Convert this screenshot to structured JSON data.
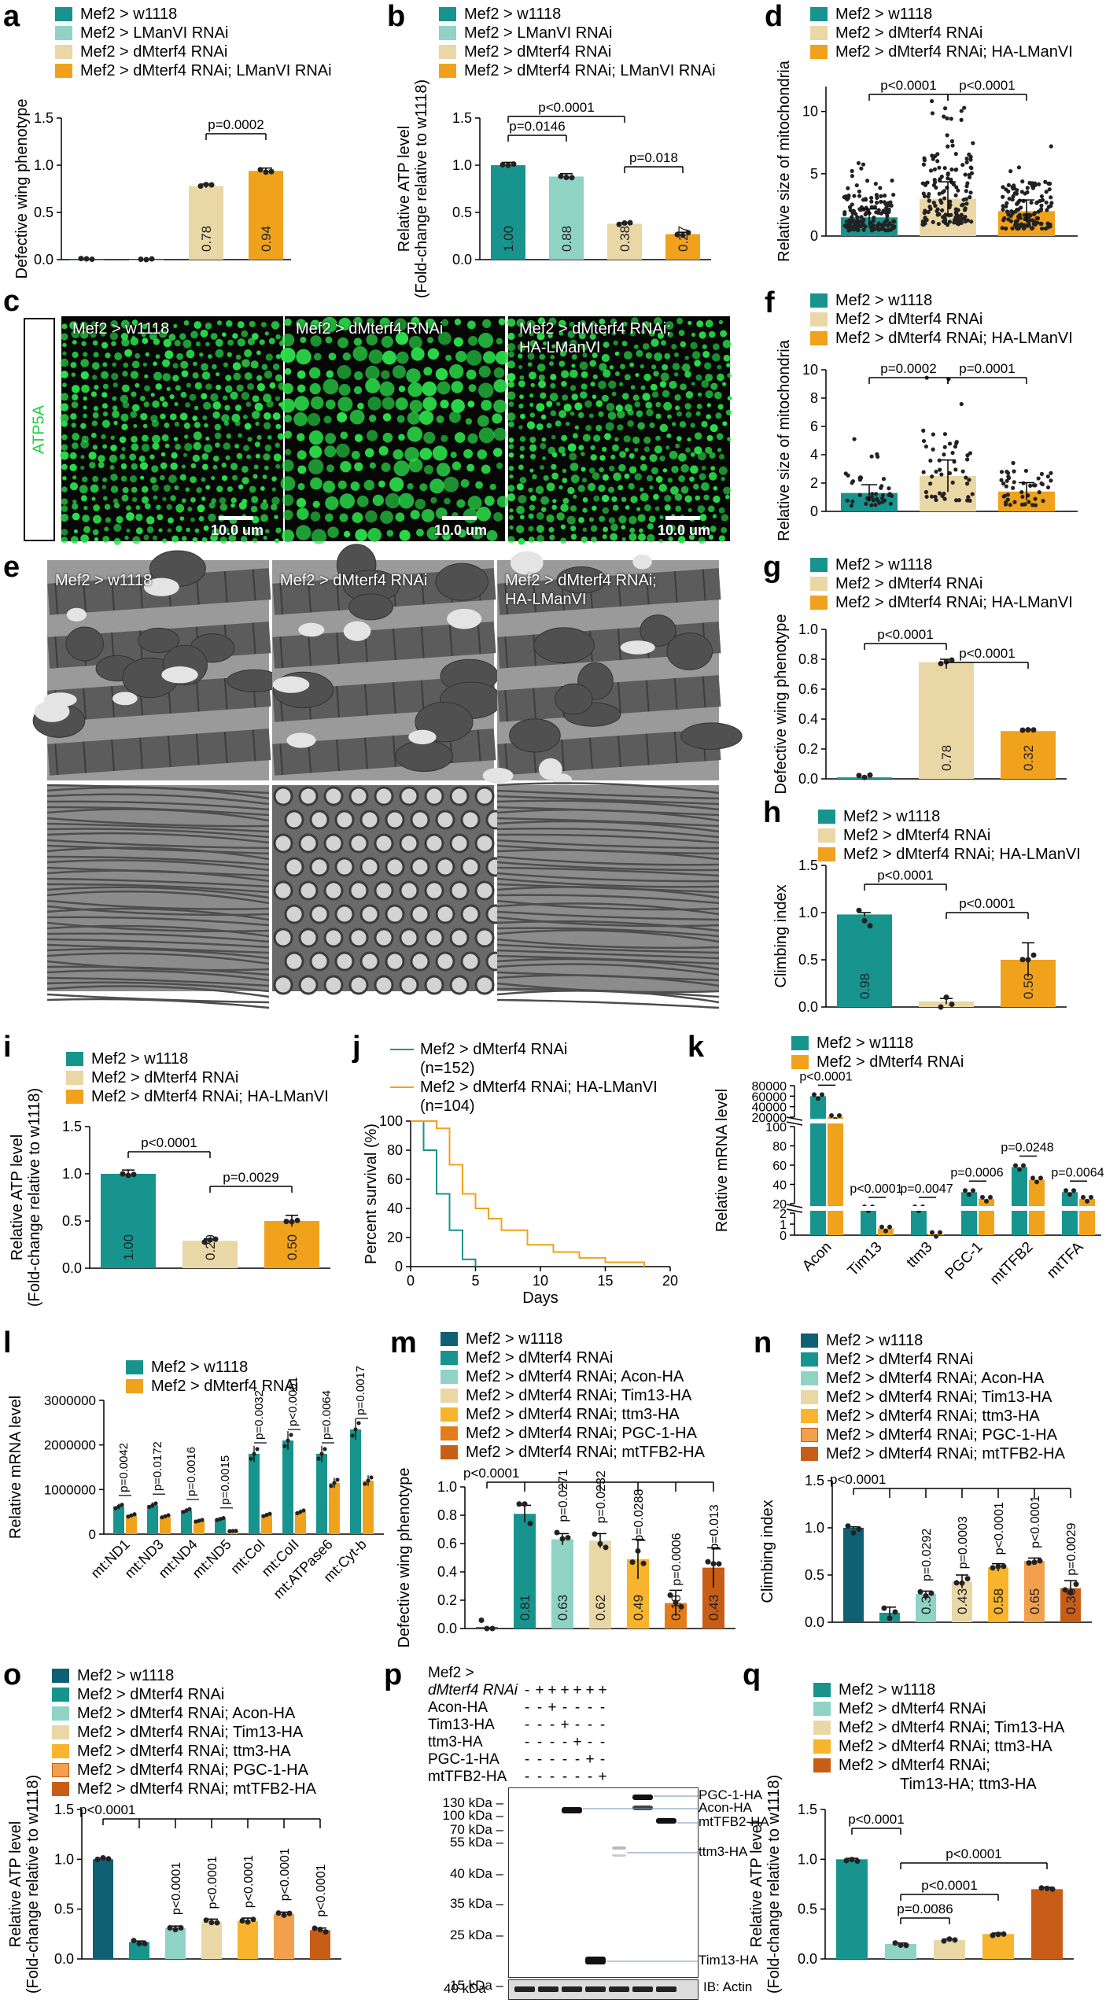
{
  "colors": {
    "teal": "#17948e",
    "mint": "#8ed3c4",
    "wheat": "#ead7a6",
    "orange": "#f0a21d",
    "darkteal": "#0f6073",
    "amber": "#f7b42c",
    "lightorange": "#f3a04e",
    "rust": "#c85d18"
  },
  "panels": {
    "a": {
      "label": "a",
      "legend": [
        "Mef2 > w1118",
        "Mef2 > LManVI RNAi",
        "Mef2 > dMterf4 RNAi",
        "Mef2 > dMterf4 RNAi; LManVI RNAi"
      ],
      "ylabel": "Defective wing phenotype",
      "pvalue": "p=0.0002",
      "bar_labels": [
        "",
        "",
        "0.78",
        "0.94"
      ]
    },
    "b": {
      "label": "b",
      "legend": [
        "Mef2 > w1118",
        "Mef2 > LManVI RNAi",
        "Mef2 > dMterf4 RNAi",
        "Mef2 > dMterf4 RNAi; LManVI RNAi"
      ],
      "ylabel": "Relative ATP level",
      "ylabel2": "(Fold-change relative to w1118)",
      "pvalues": [
        "p<0.0001",
        "p=0.0146",
        "p=0.018"
      ],
      "bar_labels": [
        "1.00",
        "0.88",
        "0.38",
        "0.27"
      ]
    },
    "c": {
      "label": "c",
      "side_label": "ATP5A",
      "captions": [
        "Mef2 > w1118",
        "Mef2 > dMterf4 RNAi",
        "Mef2 > dMterf4 RNAi; HA-LManVI"
      ],
      "scale": "10.0 um"
    },
    "d": {
      "label": "d",
      "legend": [
        "Mef2 > w1118",
        "Mef2 > dMterf4 RNAi",
        "Mef2 > dMterf4 RNAi; HA-LManVI"
      ],
      "ylabel": "Relative size of mitochondria",
      "pvalues": [
        "p<0.0001",
        "p<0.0001"
      ]
    },
    "e": {
      "label": "e",
      "captions": [
        "Mef2 > w1118",
        "Mef2 > dMterf4 RNAi",
        "Mef2 > dMterf4 RNAi; HA-LManVI"
      ]
    },
    "f": {
      "label": "f",
      "legend": [
        "Mef2 > w1118",
        "Mef2 > dMterf4 RNAi",
        "Mef2 > dMterf4 RNAi; HA-LManVI"
      ],
      "ylabel": "Relative size of mitochondria",
      "pvalues": [
        "p=0.0002",
        "p=0.0001"
      ]
    },
    "g": {
      "label": "g",
      "legend": [
        "Mef2 > w1118",
        "Mef2 > dMterf4 RNAi",
        "Mef2 > dMterf4 RNAi; HA-LManVI"
      ],
      "ylabel": "Defective wing phenotype",
      "pvalues": [
        "p<0.0001",
        "p<0.0001"
      ],
      "bar_labels": [
        "",
        "0.78",
        "0.32"
      ]
    },
    "h": {
      "label": "h",
      "legend": [
        "Mef2 > w1118",
        "Mef2 > dMterf4 RNAi",
        "Mef2 > dMterf4 RNAi; HA-LManVI"
      ],
      "ylabel": "Climbing index",
      "pvalues": [
        "p<0.0001",
        "p<0.0001"
      ],
      "bar_labels": [
        "0.98",
        "",
        "0.50"
      ]
    },
    "i": {
      "label": "i",
      "legend": [
        "Mef2 > w1118",
        "Mef2 > dMterf4 RNAi",
        "Mef2 > dMterf4 RNAi; HA-LManVI"
      ],
      "ylabel": "Relative ATP level",
      "ylabel2": "(Fold-change relative to w1118)",
      "pvalues": [
        "p<0.0001",
        "p=0.0029"
      ],
      "bar_labels": [
        "1.00",
        "0.29",
        "0.50"
      ]
    },
    "j": {
      "label": "j",
      "legend": [
        "Mef2 > dMterf4 RNAi",
        "(n=152)",
        "Mef2 > dMterf4 RNAi;  HA-LManVI",
        "(n=104)"
      ],
      "ylabel": "Percent survival (%)",
      "xlabel": "Days"
    },
    "k": {
      "label": "k",
      "legend": [
        "Mef2 > w1118",
        "Mef2 > dMterf4 RNAi"
      ],
      "ylabel": "Relative mRNA level",
      "categories": [
        "Acon",
        "Tim13",
        "ttm3",
        "PGC-1",
        "mtTFB2",
        "mtTFA"
      ],
      "pvalues": [
        "p<0.0001",
        "p<0.0001",
        "p=0.0047",
        "p=0.0006",
        "p=0.0248",
        "p=0.0064"
      ]
    },
    "l": {
      "label": "l",
      "legend": [
        "Mef2 > w1118",
        "Mef2 > dMterf4 RNAi"
      ],
      "ylabel": "Relative mRNA level",
      "categories": [
        "mt:ND1",
        "mt:ND3",
        "mt:ND4",
        "mt:ND5",
        "mt:CoI",
        "mt:CoII",
        "mt:ATPase6",
        "mt:Cyt-b"
      ],
      "pvalues": [
        "p=0.0042",
        "p=0.0172",
        "p=0.0016",
        "p=0.0015",
        "p=0.0032",
        "p<0.0001",
        "p=0.0064",
        "p=0.0017"
      ]
    },
    "m": {
      "label": "m",
      "legend": [
        "Mef2 > w1118",
        "Mef2 > dMterf4 RNAi",
        "Mef2 > dMterf4 RNAi; Acon-HA",
        "Mef2 > dMterf4 RNAi; Tim13-HA",
        "Mef2 > dMterf4 RNAi; ttm3-HA",
        "Mef2 > dMterf4 RNAi; PGC-1-HA",
        "Mef2 > dMterf4 RNAi; mtTFB2-HA"
      ],
      "ylabel": "Defective wing phenotype",
      "pvalues": [
        "p<0.0001",
        "p=0.0271",
        "p=0.0232",
        "p=0.0288",
        "p=0.0006",
        "p=0.013"
      ],
      "bar_labels": [
        "",
        "0.81",
        "0.63",
        "0.62",
        "0.49",
        "0.18",
        "0.43"
      ]
    },
    "n": {
      "label": "n",
      "legend": [
        "Mef2 > w1118",
        "Mef2 > dMterf4 RNAi",
        "Mef2 > dMterf4 RNAi; Acon-HA",
        "Mef2 > dMterf4 RNAi; Tim13-HA",
        "Mef2 > dMterf4 RNAi; ttm3-HA",
        "Mef2 > dMterf4 RNAi; PGC-1-HA",
        "Mef2 > dMterf4 RNAi; mtTFB2-HA"
      ],
      "ylabel": "Climbing index",
      "pvalues": [
        "p<0.0001",
        "p=0.0292",
        "p=0.0003",
        "p<0.0001",
        "p<0.0001",
        "p=0.0029"
      ],
      "bar_labels": [
        "",
        "",
        "0.3",
        "0.43",
        "0.58",
        "0.65",
        "0.36"
      ]
    },
    "o": {
      "label": "o",
      "legend": [
        "Mef2 > w1118",
        "Mef2 > dMterf4 RNAi",
        "Mef2 > dMterf4 RNAi; Acon-HA",
        "Mef2 > dMterf4 RNAi; Tim13-HA",
        "Mef2 > dMterf4 RNAi; ttm3-HA",
        "Mef2 > dMterf4 RNAi; PGC-1-HA",
        "Mef2 > dMterf4 RNAi; mtTFB2-HA"
      ],
      "ylabel": "Relative ATP level",
      "ylabel2": "(Fold-change relative to w1118)",
      "pvalues": [
        "p<0.0001",
        "p<0.0001",
        "p<0.0001",
        "p<0.0001",
        "p<0.0001",
        "p<0.0001"
      ]
    },
    "p": {
      "label": "p",
      "rows": [
        {
          "name": "Mef2 >",
          "signs": []
        },
        {
          "name": "dMterf4 RNAi",
          "signs": [
            "-",
            "+",
            "+",
            "+",
            "+",
            "+",
            "+"
          ]
        },
        {
          "name": "Acon-HA",
          "signs": [
            "-",
            "-",
            "+",
            "-",
            "-",
            "-",
            "-"
          ]
        },
        {
          "name": "Tim13-HA",
          "signs": [
            "-",
            "-",
            "-",
            "+",
            "-",
            "-",
            "-"
          ]
        },
        {
          "name": "ttm3-HA",
          "signs": [
            "-",
            "-",
            "-",
            "-",
            "+",
            "-",
            "-"
          ]
        },
        {
          "name": "PGC-1-HA",
          "signs": [
            "-",
            "-",
            "-",
            "-",
            "-",
            "+",
            "-"
          ]
        },
        {
          "name": "mtTFB2-HA",
          "signs": [
            "-",
            "-",
            "-",
            "-",
            "-",
            "-",
            "+"
          ]
        }
      ],
      "markers": [
        "130 kDa",
        "100 kDa",
        "70 kDa",
        "55 kDa",
        "40 kDa",
        "35 kDa",
        "25 kDa",
        "15 kDa"
      ],
      "band_labels": [
        "PGC-1-HA",
        "Acon-HA",
        "mtTFB2-HA",
        "ttm3-HA",
        "Tim13-HA"
      ],
      "actin_marker": "40 kDa",
      "actin_label": "IB: Actin"
    },
    "q": {
      "label": "q",
      "legend": [
        "Mef2 > w1118",
        "Mef2 > dMterf4 RNAi",
        "Mef2 > dMterf4 RNAi; Tim13-HA",
        "Mef2 > dMterf4 RNAi; ttm3-HA",
        "Mef2 > dMterf4 RNAi;",
        "Tim13-HA; ttm3-HA"
      ],
      "ylabel": "Relative ATP level",
      "ylabel2": "(Fold-change relative to w1118)",
      "pvalues": [
        "p<0.0001",
        "p<0.0001",
        "p<0.0001",
        "p=0.0086"
      ]
    }
  },
  "chart_data": [
    {
      "panel": "a",
      "type": "bar",
      "categories": [
        "Mef2 > w1118",
        "Mef2 > LManVI RNAi",
        "Mef2 > dMterf4 RNAi",
        "Mef2 > dMterf4 RNAi; LManVI RNAi"
      ],
      "values": [
        0,
        0,
        0.78,
        0.94
      ],
      "ylim": [
        0,
        1.5
      ],
      "yticks": [
        "0.0",
        "0.5",
        "1.0",
        "1.5"
      ],
      "ylabel": "Defective wing phenotype"
    },
    {
      "panel": "b",
      "type": "bar",
      "categories": [
        "Mef2 > w1118",
        "Mef2 > LManVI RNAi",
        "Mef2 > dMterf4 RNAi",
        "Mef2 > dMterf4 RNAi; LManVI RNAi"
      ],
      "values": [
        1.0,
        0.88,
        0.38,
        0.27
      ],
      "ylim": [
        0,
        1.5
      ],
      "yticks": [
        "0.0",
        "0.5",
        "1.0",
        "1.5"
      ]
    },
    {
      "panel": "d",
      "type": "scatter",
      "categories": [
        "Mef2 > w1118",
        "Mef2 > dMterf4 RNAi",
        "Mef2 > dMterf4 RNAi; HA-LManVI"
      ],
      "values": [
        1.5,
        3.0,
        2.0
      ],
      "ylim": [
        0,
        12
      ],
      "yticks": [
        "0",
        "5",
        "10"
      ]
    },
    {
      "panel": "f",
      "type": "scatter",
      "categories": [
        "Mef2 > w1118",
        "Mef2 > dMterf4 RNAi",
        "Mef2 > dMterf4 RNAi; HA-LManVI"
      ],
      "values": [
        1.3,
        2.5,
        1.4
      ],
      "ylim": [
        0,
        10
      ],
      "yticks": [
        "0",
        "2",
        "4",
        "6",
        "8",
        "10"
      ]
    },
    {
      "panel": "g",
      "type": "bar",
      "categories": [
        "Mef2 > w1118",
        "Mef2 > dMterf4 RNAi",
        "Mef2 > dMterf4 RNAi; HA-LManVI"
      ],
      "values": [
        0.01,
        0.78,
        0.32
      ],
      "ylim": [
        0,
        1.0
      ],
      "yticks": [
        "0.0",
        "0.2",
        "0.4",
        "0.6",
        "0.8",
        "1.0"
      ]
    },
    {
      "panel": "h",
      "type": "bar",
      "categories": [
        "Mef2 > w1118",
        "Mef2 > dMterf4 RNAi",
        "Mef2 > dMterf4 RNAi; HA-LManVI"
      ],
      "values": [
        0.98,
        0.06,
        0.5
      ],
      "ylim": [
        0,
        1.5
      ],
      "yticks": [
        "0.0",
        "0.5",
        "1.0",
        "1.5"
      ]
    },
    {
      "panel": "i",
      "type": "bar",
      "categories": [
        "Mef2 > w1118",
        "Mef2 > dMterf4 RNAi",
        "Mef2 > dMterf4 RNAi; HA-LManVI"
      ],
      "values": [
        1.0,
        0.29,
        0.5
      ],
      "ylim": [
        0,
        1.5
      ],
      "yticks": [
        "0.0",
        "0.5",
        "1.0",
        "1.5"
      ]
    },
    {
      "panel": "j",
      "type": "line",
      "series": [
        {
          "name": "Mef2 > dMterf4 RNAi",
          "x": [
            0,
            1,
            2,
            3,
            4,
            5
          ],
          "y": [
            100,
            80,
            50,
            25,
            5,
            0
          ]
        },
        {
          "name": "Mef2 > dMterf4 RNAi;  HA-LManVI",
          "x": [
            0,
            2,
            3,
            4,
            5,
            6,
            7,
            9,
            11,
            13,
            15,
            18
          ],
          "y": [
            100,
            95,
            70,
            50,
            40,
            33,
            25,
            15,
            10,
            6,
            3,
            0
          ]
        }
      ],
      "xlim": [
        0,
        20
      ],
      "ylim": [
        0,
        100
      ],
      "xticks": [
        "0",
        "5",
        "10",
        "15",
        "20"
      ],
      "yticks": [
        "0",
        "20",
        "40",
        "60",
        "80",
        "100"
      ],
      "xlabel": "Days",
      "ylabel": "Percent survival (%)"
    },
    {
      "panel": "k",
      "type": "bar",
      "categories": [
        "Acon",
        "Tim13",
        "ttm3",
        "PGC-1",
        "mtTFB2",
        "mtTFA"
      ],
      "series": [
        {
          "name": "Mef2 > w1118",
          "values": [
            60000,
            19,
            4,
            32,
            58,
            32
          ]
        },
        {
          "name": "Mef2 > dMterf4 RNAi",
          "values": [
            18000,
            0.6,
            0.1,
            25,
            45,
            25
          ]
        }
      ],
      "yticks": [
        "0",
        "1",
        "2",
        "20",
        "40",
        "60",
        "80",
        "100",
        "20000",
        "40000",
        "60000",
        "80000"
      ]
    },
    {
      "panel": "l",
      "type": "bar",
      "categories": [
        "mt:ND1",
        "mt:ND3",
        "mt:ND4",
        "mt:ND5",
        "mt:CoI",
        "mt:CoII",
        "mt:ATPase6",
        "mt:Cyt-b"
      ],
      "series": [
        {
          "name": "Mef2 > w1118",
          "values": [
            620000,
            650000,
            530000,
            340000,
            1800000,
            2100000,
            1800000,
            2350000
          ]
        },
        {
          "name": "Mef2 > dMterf4 RNAi",
          "values": [
            420000,
            400000,
            300000,
            70000,
            430000,
            500000,
            1150000,
            1200000
          ]
        }
      ],
      "ylim": [
        0,
        3000000
      ],
      "yticks": [
        "0",
        "1000000",
        "2000000",
        "3000000"
      ]
    },
    {
      "panel": "m",
      "type": "bar",
      "categories": [
        "Mef2 > w1118",
        "Mef2 > dMterf4 RNAi",
        "Mef2 > dMterf4 RNAi; Acon-HA",
        "Mef2 > dMterf4 RNAi; Tim13-HA",
        "Mef2 > dMterf4 RNAi; ttm3-HA",
        "Mef2 > dMterf4 RNAi; PGC-1-HA",
        "Mef2 > dMterf4 RNAi; mtTFB2-HA"
      ],
      "values": [
        0.01,
        0.81,
        0.63,
        0.62,
        0.49,
        0.18,
        0.43
      ],
      "ylim": [
        0,
        1.0
      ],
      "yticks": [
        "0.0",
        "0.2",
        "0.4",
        "0.6",
        "0.8",
        "1.0"
      ]
    },
    {
      "panel": "n",
      "type": "bar",
      "categories": [
        "Mef2 > w1118",
        "Mef2 > dMterf4 RNAi",
        "Mef2 > dMterf4 RNAi; Acon-HA",
        "Mef2 > dMterf4 RNAi; Tim13-HA",
        "Mef2 > dMterf4 RNAi; ttm3-HA",
        "Mef2 > dMterf4 RNAi; PGC-1-HA",
        "Mef2 > dMterf4 RNAi; mtTFB2-HA"
      ],
      "values": [
        1.0,
        0.1,
        0.3,
        0.43,
        0.58,
        0.65,
        0.36
      ],
      "ylim": [
        0,
        1.5
      ],
      "yticks": [
        "0.0",
        "0.5",
        "1.0",
        "1.5"
      ]
    },
    {
      "panel": "o",
      "type": "bar",
      "categories": [
        "Mef2 > w1118",
        "Mef2 > dMterf4 RNAi",
        "Mef2 > dMterf4 RNAi; Acon-HA",
        "Mef2 > dMterf4 RNAi; Tim13-HA",
        "Mef2 > dMterf4 RNAi; ttm3-HA",
        "Mef2 > dMterf4 RNAi; PGC-1-HA",
        "Mef2 > dMterf4 RNAi; mtTFB2-HA"
      ],
      "values": [
        1.0,
        0.17,
        0.31,
        0.37,
        0.38,
        0.45,
        0.29
      ],
      "ylim": [
        0,
        1.5
      ],
      "yticks": [
        "0.0",
        "0.5",
        "1.0",
        "1.5"
      ]
    },
    {
      "panel": "q",
      "type": "bar",
      "categories": [
        "Mef2 > w1118",
        "Mef2 > dMterf4 RNAi",
        "Mef2 > dMterf4 RNAi; Tim13-HA",
        "Mef2 > dMterf4 RNAi; ttm3-HA",
        "Mef2 > dMterf4 RNAi; Tim13-HA; ttm3-HA"
      ],
      "values": [
        1.0,
        0.15,
        0.19,
        0.25,
        0.7
      ],
      "ylim": [
        0,
        1.5
      ],
      "yticks": [
        "0.0",
        "0.5",
        "1.0",
        "1.5"
      ]
    }
  ]
}
